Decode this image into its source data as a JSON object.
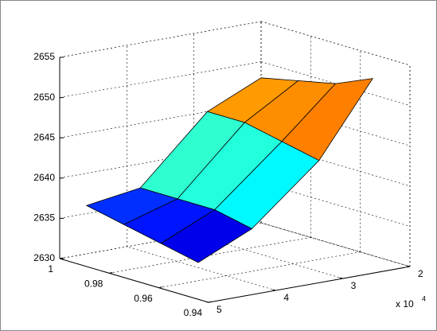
{
  "chart_data": {
    "type": "surface",
    "colormap": "jet",
    "x": [
      0.955,
      0.97,
      0.985,
      1.0
    ],
    "y": [
      20000,
      28000,
      38000,
      46000
    ],
    "z": [
      [
        2652,
        2650,
        2649,
        2648
      ],
      [
        2643,
        2644,
        2645,
        2645
      ],
      [
        2636,
        2637,
        2637,
        2637
      ],
      [
        2633,
        2634,
        2635,
        2636
      ]
    ],
    "xlim": [
      0.94,
      1
    ],
    "xticks": [
      0.94,
      0.96,
      0.98,
      1
    ],
    "ylim": [
      20000,
      50000
    ],
    "yticks": [
      {
        "value": 20000,
        "label": "2"
      },
      {
        "value": 30000,
        "label": "3"
      },
      {
        "value": 40000,
        "label": "4"
      },
      {
        "value": 50000,
        "label": "5"
      }
    ],
    "y_multiplier": "x 10",
    "y_exponent": "4",
    "zlim": [
      2630,
      2655
    ],
    "zticks": [
      2630,
      2635,
      2640,
      2645,
      2650,
      2655
    ],
    "grid": true
  }
}
